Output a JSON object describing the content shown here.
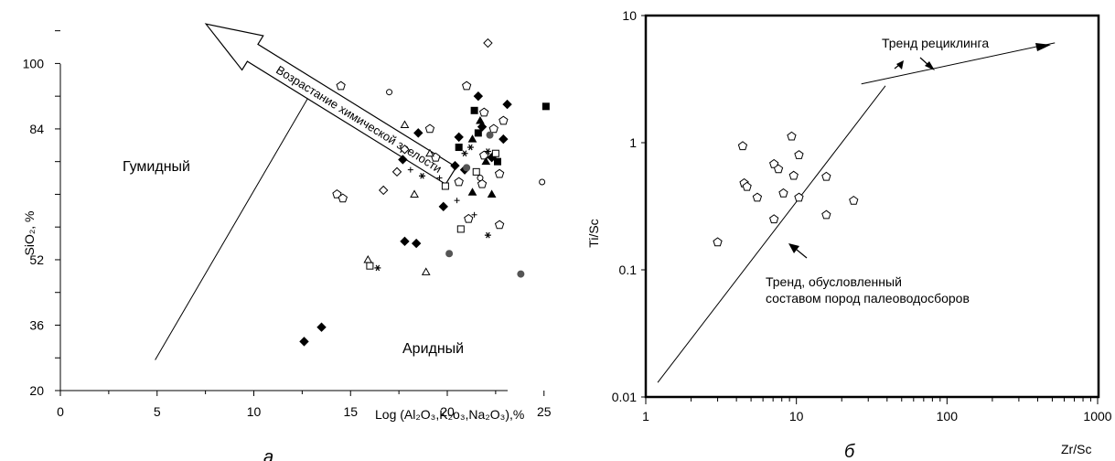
{
  "chart_data": [
    {
      "panel": "a",
      "type": "scatter",
      "title": "",
      "xlabel": "Log (Al₂O₃,K₂o₃,Na₂O₃),%",
      "ylabel": "SiO₂, %",
      "xlim": [
        0,
        26
      ],
      "ylim": [
        20,
        116
      ],
      "xticks": [
        0,
        5,
        10,
        15,
        20,
        25
      ],
      "yticks": [
        20,
        36,
        52,
        68,
        84,
        100
      ],
      "ytick_labels": [
        "20",
        "36",
        "52",
        "",
        "84",
        "100"
      ],
      "grid": false,
      "field_labels": [
        "Гумидный",
        "Аридный"
      ],
      "arrow_label": "Возрастание химической зрелости",
      "boundary_line": [
        [
          4.9,
          27.5
        ],
        [
          13.1,
          94
        ]
      ],
      "panel_letter": "a",
      "points": [
        {
          "m": "filled-diamond",
          "x": 12.6,
          "y": 32
        },
        {
          "m": "filled-diamond",
          "x": 13.5,
          "y": 35.5
        },
        {
          "m": "filled-diamond",
          "x": 17.8,
          "y": 56.5
        },
        {
          "m": "filled-diamond",
          "x": 18.4,
          "y": 56
        },
        {
          "m": "filled-diamond",
          "x": 17.7,
          "y": 76.5
        },
        {
          "m": "filled-diamond",
          "x": 18.5,
          "y": 83
        },
        {
          "m": "filled-diamond",
          "x": 19.8,
          "y": 65
        },
        {
          "m": "filled-diamond",
          "x": 20.4,
          "y": 75
        },
        {
          "m": "filled-diamond",
          "x": 20.9,
          "y": 74
        },
        {
          "m": "filled-diamond",
          "x": 21.6,
          "y": 92
        },
        {
          "m": "filled-diamond",
          "x": 21.8,
          "y": 84.5
        },
        {
          "m": "filled-diamond",
          "x": 22.3,
          "y": 77
        },
        {
          "m": "filled-diamond",
          "x": 22.9,
          "y": 81.5
        },
        {
          "m": "filled-diamond",
          "x": 23.1,
          "y": 90
        },
        {
          "m": "filled-diamond",
          "x": 20.6,
          "y": 82
        },
        {
          "m": "filled-square",
          "x": 25.1,
          "y": 89.5
        },
        {
          "m": "filled-square",
          "x": 21.4,
          "y": 88.5
        },
        {
          "m": "filled-square",
          "x": 20.6,
          "y": 79.5
        },
        {
          "m": "filled-square",
          "x": 21.6,
          "y": 83
        },
        {
          "m": "filled-square",
          "x": 22.6,
          "y": 76
        },
        {
          "m": "open-diamond",
          "x": 22.1,
          "y": 105
        },
        {
          "m": "open-diamond",
          "x": 16.7,
          "y": 69
        },
        {
          "m": "open-diamond",
          "x": 17.4,
          "y": 73.5
        },
        {
          "m": "open-diamond",
          "x": 17.8,
          "y": 79
        },
        {
          "m": "open-pentagon",
          "x": 14.5,
          "y": 94.5
        },
        {
          "m": "open-pentagon",
          "x": 14.3,
          "y": 68
        },
        {
          "m": "open-pentagon",
          "x": 14.6,
          "y": 67
        },
        {
          "m": "open-pentagon",
          "x": 21.0,
          "y": 94.5
        },
        {
          "m": "open-pentagon",
          "x": 21.9,
          "y": 88
        },
        {
          "m": "open-pentagon",
          "x": 22.9,
          "y": 86
        },
        {
          "m": "open-pentagon",
          "x": 22.4,
          "y": 84
        },
        {
          "m": "open-pentagon",
          "x": 21.9,
          "y": 77.5
        },
        {
          "m": "open-pentagon",
          "x": 19.4,
          "y": 77
        },
        {
          "m": "open-pentagon",
          "x": 19.1,
          "y": 84
        },
        {
          "m": "open-pentagon",
          "x": 21.1,
          "y": 62
        },
        {
          "m": "open-pentagon",
          "x": 22.7,
          "y": 60.5
        },
        {
          "m": "open-pentagon",
          "x": 22.7,
          "y": 73
        },
        {
          "m": "open-pentagon",
          "x": 21.8,
          "y": 70.5
        },
        {
          "m": "open-pentagon",
          "x": 20.6,
          "y": 71
        },
        {
          "m": "open-square",
          "x": 16.0,
          "y": 50.5
        },
        {
          "m": "open-square",
          "x": 20.7,
          "y": 59.5
        },
        {
          "m": "open-square",
          "x": 19.9,
          "y": 70
        },
        {
          "m": "open-square",
          "x": 21.5,
          "y": 73.5
        },
        {
          "m": "open-square",
          "x": 22.5,
          "y": 78
        },
        {
          "m": "open-triangle",
          "x": 15.9,
          "y": 52
        },
        {
          "m": "open-triangle",
          "x": 18.9,
          "y": 49
        },
        {
          "m": "open-triangle",
          "x": 17.8,
          "y": 85
        },
        {
          "m": "open-triangle",
          "x": 18.3,
          "y": 68
        },
        {
          "m": "open-triangle",
          "x": 19.1,
          "y": 78
        },
        {
          "m": "filled-triangle",
          "x": 21.3,
          "y": 81.5
        },
        {
          "m": "filled-triangle",
          "x": 21.7,
          "y": 86
        },
        {
          "m": "filled-triangle",
          "x": 21.3,
          "y": 68.5
        },
        {
          "m": "filled-triangle",
          "x": 22.0,
          "y": 76
        },
        {
          "m": "filled-triangle",
          "x": 22.3,
          "y": 68
        },
        {
          "m": "open-circle",
          "x": 17.0,
          "y": 93
        },
        {
          "m": "open-circle",
          "x": 24.9,
          "y": 71
        },
        {
          "m": "open-circle",
          "x": 21.7,
          "y": 72
        },
        {
          "m": "filled-circle",
          "x": 20.1,
          "y": 53.5
        },
        {
          "m": "filled-circle",
          "x": 23.8,
          "y": 48.5
        },
        {
          "m": "filled-circle",
          "x": 21.0,
          "y": 74.5
        },
        {
          "m": "filled-circle",
          "x": 22.2,
          "y": 82.5
        },
        {
          "m": "asterisk",
          "x": 16.4,
          "y": 50
        },
        {
          "m": "asterisk",
          "x": 18.7,
          "y": 72.5
        },
        {
          "m": "asterisk",
          "x": 20.9,
          "y": 78
        },
        {
          "m": "asterisk",
          "x": 21.2,
          "y": 79.5
        },
        {
          "m": "asterisk",
          "x": 22.1,
          "y": 78.5
        },
        {
          "m": "asterisk",
          "x": 22.1,
          "y": 58
        },
        {
          "m": "plus",
          "x": 18.1,
          "y": 74
        },
        {
          "m": "plus",
          "x": 19.6,
          "y": 72
        },
        {
          "m": "plus",
          "x": 21.4,
          "y": 63
        },
        {
          "m": "plus",
          "x": 20.5,
          "y": 66.5
        }
      ]
    },
    {
      "panel": "b",
      "type": "scatter",
      "title": "",
      "xlabel": "Zr/Sc",
      "ylabel": "Ti/Sc",
      "x_scale": "log",
      "y_scale": "log",
      "xlim": [
        1,
        1000
      ],
      "ylim": [
        0.01,
        10
      ],
      "xticks": [
        1,
        10,
        100,
        1000
      ],
      "yticks": [
        0.01,
        0.1,
        1,
        10
      ],
      "xtick_labels": [
        "1",
        "10",
        "100",
        "1000"
      ],
      "ytick_labels": [
        "0.01",
        "0.1",
        "1",
        "10"
      ],
      "grid": false,
      "annotations": [
        "Тренд рециклинга",
        "Тренд,  обусловленный",
        "составом пород палеоводосборов"
      ],
      "panel_letter": "б",
      "trend_line": [
        [
          1.2,
          0.013
        ],
        [
          39,
          2.8
        ]
      ],
      "recycling_line": [
        [
          27,
          2.9
        ],
        [
          520,
          6.1
        ]
      ],
      "points": [
        {
          "m": "open-pentagon",
          "x": 3.0,
          "y": 0.165
        },
        {
          "m": "open-pentagon",
          "x": 4.4,
          "y": 0.94
        },
        {
          "m": "open-pentagon",
          "x": 4.5,
          "y": 0.48
        },
        {
          "m": "open-pentagon",
          "x": 4.7,
          "y": 0.45
        },
        {
          "m": "open-pentagon",
          "x": 5.5,
          "y": 0.37
        },
        {
          "m": "open-pentagon",
          "x": 7.1,
          "y": 0.68
        },
        {
          "m": "open-pentagon",
          "x": 7.6,
          "y": 0.62
        },
        {
          "m": "open-pentagon",
          "x": 7.1,
          "y": 0.25
        },
        {
          "m": "open-pentagon",
          "x": 8.2,
          "y": 0.4
        },
        {
          "m": "open-pentagon",
          "x": 9.3,
          "y": 1.12
        },
        {
          "m": "open-pentagon",
          "x": 9.6,
          "y": 0.55
        },
        {
          "m": "open-pentagon",
          "x": 10.4,
          "y": 0.8
        },
        {
          "m": "open-pentagon",
          "x": 10.4,
          "y": 0.37
        },
        {
          "m": "open-pentagon",
          "x": 15.8,
          "y": 0.54
        },
        {
          "m": "open-pentagon",
          "x": 15.8,
          "y": 0.27
        },
        {
          "m": "open-pentagon",
          "x": 24,
          "y": 0.35
        }
      ]
    }
  ]
}
